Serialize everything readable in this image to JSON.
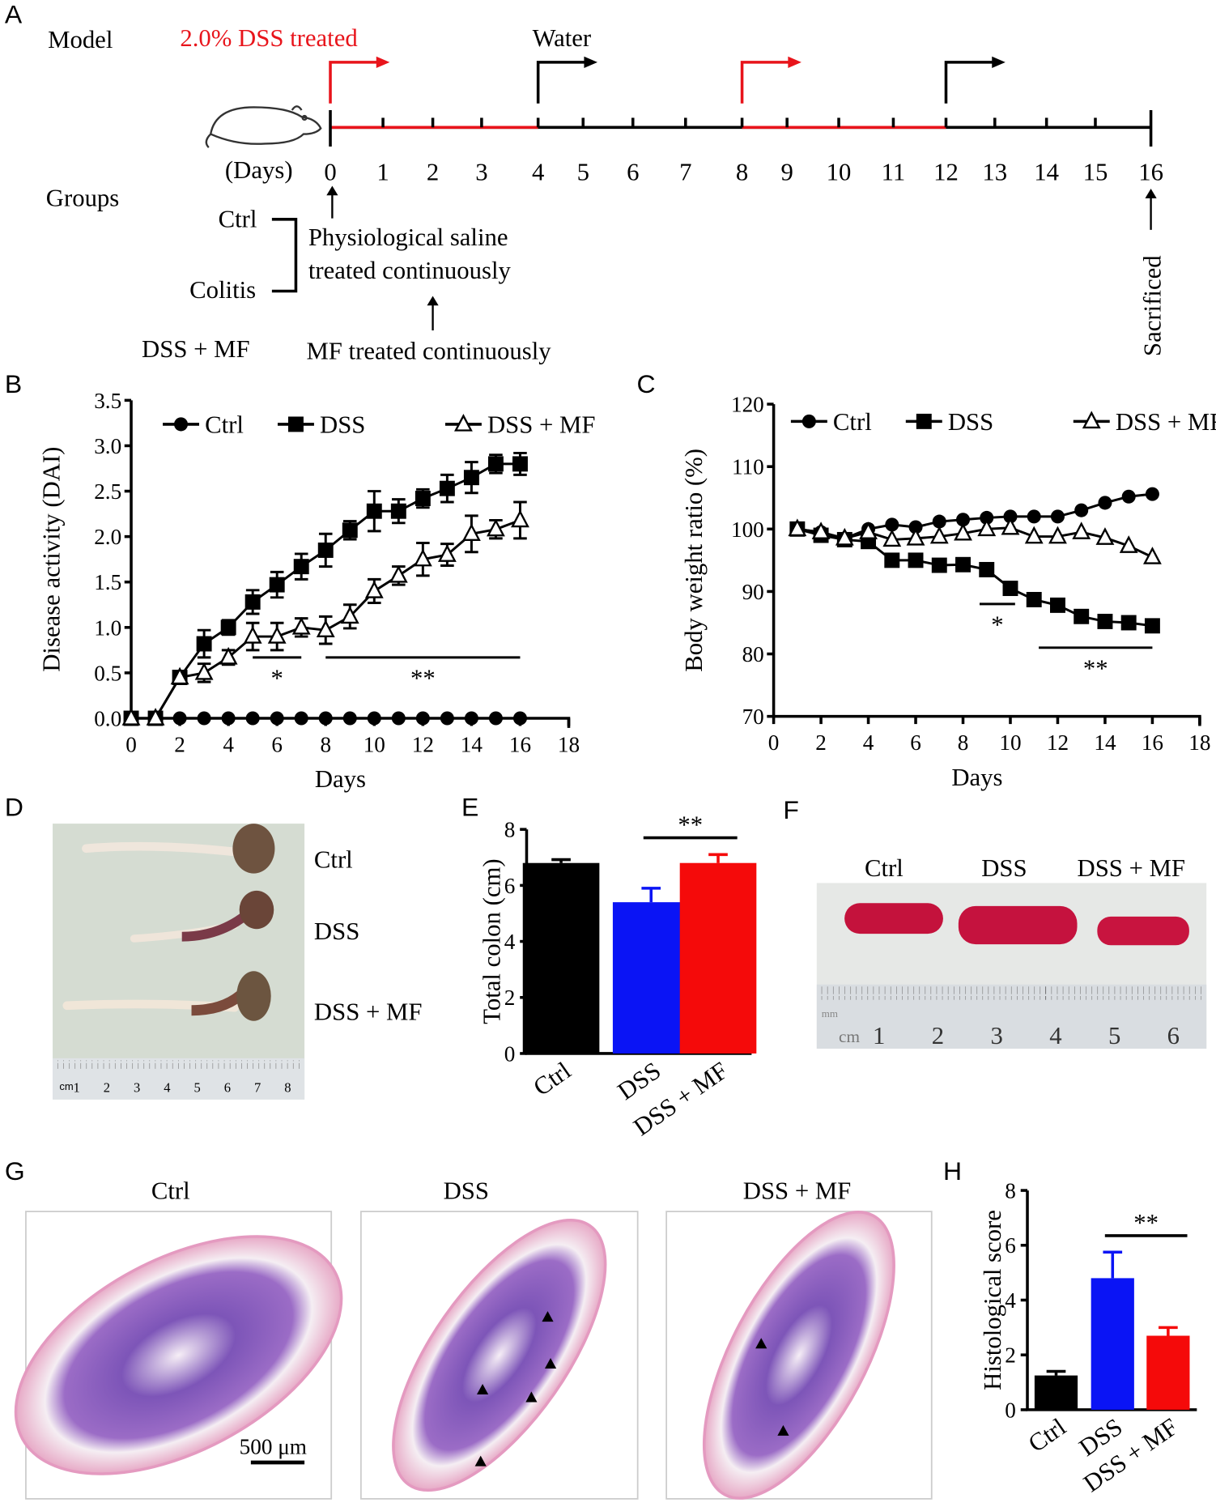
{
  "panel_labels": {
    "a": "A",
    "b": "B",
    "c": "C",
    "d": "D",
    "e": "E",
    "f": "F",
    "g": "G",
    "h": "H"
  },
  "panel_a": {
    "model_label": "Model",
    "dss_label": "2.0% DSS treated",
    "water_label": "Water",
    "days_label": "(Days)",
    "days": [
      "0",
      "1",
      "2",
      "3",
      "4",
      "5",
      "6",
      "7",
      "8",
      "9",
      "10",
      "11",
      "12",
      "13",
      "14",
      "15",
      "16"
    ],
    "groups_label": "Groups",
    "ctrl": "Ctrl",
    "colitis": "Colitis",
    "saline_line1": "Physiological saline",
    "saline_line2": "treated continuously",
    "dssmf": "DSS + MF",
    "mf_text": "MF treated continuously",
    "sacrificed": "Sacrificed",
    "colors": {
      "dss": "#e8141b",
      "water": "#000000"
    }
  },
  "chart_data": [
    {
      "id": "B",
      "type": "line",
      "xlabel": "Days",
      "ylabel": "Disease activity (DAI)",
      "xlim": [
        0,
        18
      ],
      "ylim": [
        0,
        3.5
      ],
      "xticks": [
        "0",
        "2",
        "4",
        "6",
        "8",
        "10",
        "12",
        "14",
        "16",
        "18"
      ],
      "yticks": [
        "0.0",
        "0.5",
        "1.0",
        "1.5",
        "2.0",
        "2.5",
        "3.0",
        "3.5"
      ],
      "legend": [
        "Ctrl",
        "DSS",
        "DSS + MF"
      ],
      "legend_position": "top",
      "x": [
        0,
        1,
        2,
        3,
        4,
        5,
        6,
        7,
        8,
        9,
        10,
        11,
        12,
        13,
        14,
        15,
        16
      ],
      "series": [
        {
          "name": "Ctrl",
          "marker": "circle",
          "values": [
            0,
            0,
            0,
            0,
            0,
            0,
            0,
            0,
            0,
            0,
            0,
            0,
            0,
            0,
            0,
            0,
            0
          ],
          "errors": [
            0,
            0,
            0,
            0,
            0,
            0,
            0,
            0,
            0,
            0,
            0,
            0,
            0,
            0,
            0,
            0,
            0
          ]
        },
        {
          "name": "DSS",
          "marker": "square",
          "values": [
            0,
            0,
            0.45,
            0.82,
            1.0,
            1.28,
            1.47,
            1.67,
            1.85,
            2.07,
            2.28,
            2.28,
            2.42,
            2.53,
            2.65,
            2.8,
            2.8
          ],
          "errors": [
            0,
            0,
            0.03,
            0.15,
            0.08,
            0.13,
            0.14,
            0.14,
            0.18,
            0.1,
            0.22,
            0.13,
            0.1,
            0.15,
            0.17,
            0.1,
            0.12
          ]
        },
        {
          "name": "DSS + MF",
          "marker": "triangle-open",
          "values": [
            0,
            0,
            0.45,
            0.5,
            0.67,
            0.9,
            0.9,
            1.0,
            0.97,
            1.12,
            1.4,
            1.57,
            1.75,
            1.8,
            2.03,
            2.08,
            2.18
          ],
          "errors": [
            0,
            0,
            0.03,
            0.1,
            0.08,
            0.15,
            0.15,
            0.1,
            0.15,
            0.13,
            0.13,
            0.1,
            0.18,
            0.12,
            0.2,
            0.1,
            0.2
          ]
        }
      ],
      "annotations": [
        {
          "text": "*",
          "x_range": [
            5,
            7
          ]
        },
        {
          "text": "**",
          "x_range": [
            8,
            16
          ]
        }
      ]
    },
    {
      "id": "C",
      "type": "line",
      "xlabel": "Days",
      "ylabel": "Body weight ratio (%)",
      "xlim": [
        0,
        18
      ],
      "ylim": [
        70,
        120
      ],
      "xticks": [
        "0",
        "2",
        "4",
        "6",
        "8",
        "10",
        "12",
        "14",
        "16",
        "18"
      ],
      "yticks": [
        "70",
        "80",
        "90",
        "100",
        "110",
        "120"
      ],
      "legend": [
        "Ctrl",
        "DSS",
        "DSS + MF"
      ],
      "legend_position": "top",
      "x": [
        1,
        2,
        3,
        4,
        5,
        6,
        7,
        8,
        9,
        10,
        11,
        12,
        13,
        14,
        15,
        16
      ],
      "series": [
        {
          "name": "Ctrl",
          "marker": "circle",
          "values": [
            100,
            99.5,
            98.5,
            100,
            100.7,
            100.3,
            101.2,
            101.5,
            101.8,
            102,
            102,
            102,
            103,
            104.2,
            105.2,
            105.6
          ]
        },
        {
          "name": "DSS",
          "marker": "square",
          "values": [
            100,
            99,
            98.3,
            98,
            95,
            95,
            94.2,
            94.3,
            93.5,
            90.5,
            88.7,
            87.8,
            86,
            85.2,
            85,
            84.5
          ]
        },
        {
          "name": "DSS + MF",
          "marker": "triangle-open",
          "values": [
            100,
            99.5,
            98.5,
            99.5,
            98.3,
            98.5,
            98.8,
            99.3,
            100,
            100.2,
            98.8,
            98.8,
            99.5,
            98.6,
            97.3,
            95.5
          ]
        }
      ],
      "annotations": [
        {
          "text": "*",
          "x_range": [
            8.7,
            10.2
          ]
        },
        {
          "text": "**",
          "x_range": [
            11.2,
            16
          ]
        }
      ]
    },
    {
      "id": "E",
      "type": "bar",
      "ylabel": "Total colon (cm)",
      "ylim": [
        0,
        8
      ],
      "yticks": [
        "0",
        "2",
        "4",
        "6",
        "8"
      ],
      "categories": [
        "Ctrl",
        "DSS",
        "DSS + MF"
      ],
      "values": [
        6.8,
        5.4,
        6.8
      ],
      "errors": [
        0.12,
        0.5,
        0.3
      ],
      "colors": [
        "#000000",
        "#0a14f5",
        "#f50a0a"
      ],
      "annotations": [
        {
          "text": "**",
          "between": [
            "DSS",
            "DSS + MF"
          ]
        }
      ]
    },
    {
      "id": "H",
      "type": "bar",
      "ylabel": "Histological score",
      "ylim": [
        0,
        8
      ],
      "yticks": [
        "0",
        "2",
        "4",
        "6",
        "8"
      ],
      "categories": [
        "Ctrl",
        "DSS",
        "DSS + MF"
      ],
      "values": [
        1.25,
        4.8,
        2.7
      ],
      "errors": [
        0.15,
        0.95,
        0.3
      ],
      "colors": [
        "#000000",
        "#0a14f5",
        "#f50a0a"
      ],
      "annotations": [
        {
          "text": "**",
          "between": [
            "DSS",
            "DSS + MF"
          ]
        }
      ]
    }
  ],
  "panel_d": {
    "labels": [
      "Ctrl",
      "DSS",
      "DSS + MF"
    ],
    "ruler": [
      "cm",
      "1",
      "2",
      "3",
      "4",
      "5",
      "6",
      "7",
      "8"
    ]
  },
  "panel_f": {
    "labels": [
      "Ctrl",
      "DSS",
      "DSS + MF"
    ],
    "ruler": [
      "mm",
      "cm",
      "1",
      "2",
      "3",
      "4",
      "5",
      "6"
    ]
  },
  "panel_g": {
    "labels": [
      "Ctrl",
      "DSS",
      "DSS + MF"
    ],
    "scale_bar": "500 μm"
  }
}
